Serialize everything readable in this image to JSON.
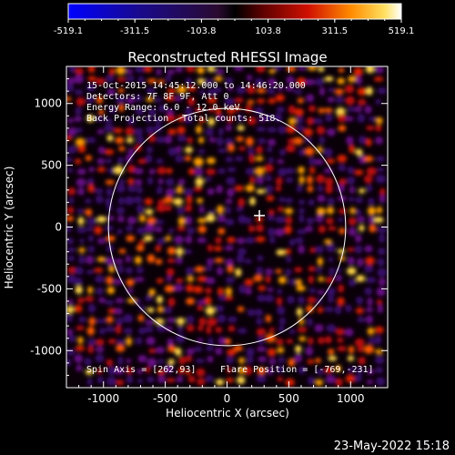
{
  "chart_data": {
    "type": "heatmap",
    "title": "Reconstructed RHESSI Image",
    "xlabel": "Heliocentric X (arcsec)",
    "ylabel": "Heliocentric Y (arcsec)",
    "xlim": [
      -1300,
      1300
    ],
    "ylim": [
      -1300,
      1300
    ],
    "x_ticks": [
      -1000,
      -500,
      0,
      500,
      1000
    ],
    "y_ticks": [
      -1000,
      -500,
      0,
      500,
      1000
    ],
    "colorbar": {
      "min": -519.1,
      "max": 519.1,
      "tick_labels": [
        "-519.1",
        "-311.5",
        "-103.8",
        "103.8",
        "311.5",
        "519.1"
      ]
    },
    "annotations": [
      "15-Oct-2015 14:45:12.000 to 14:46:20.000",
      "Detectors: 7F 8F 9F, Att 0",
      "Energy Range: 6.0 - 12.0 keV",
      "Back Projection",
      "Total counts: 518."
    ],
    "spin_axis": "Spin Axis = [262,93]",
    "flare_position": "Flare Position = [-769,-231]",
    "marker": {
      "x": 262,
      "y": 93
    },
    "solar_disk": {
      "center": [
        0,
        0
      ],
      "radius_arcsec": 960
    }
  },
  "footer": {
    "timestamp": "23-May-2022 15:18"
  }
}
